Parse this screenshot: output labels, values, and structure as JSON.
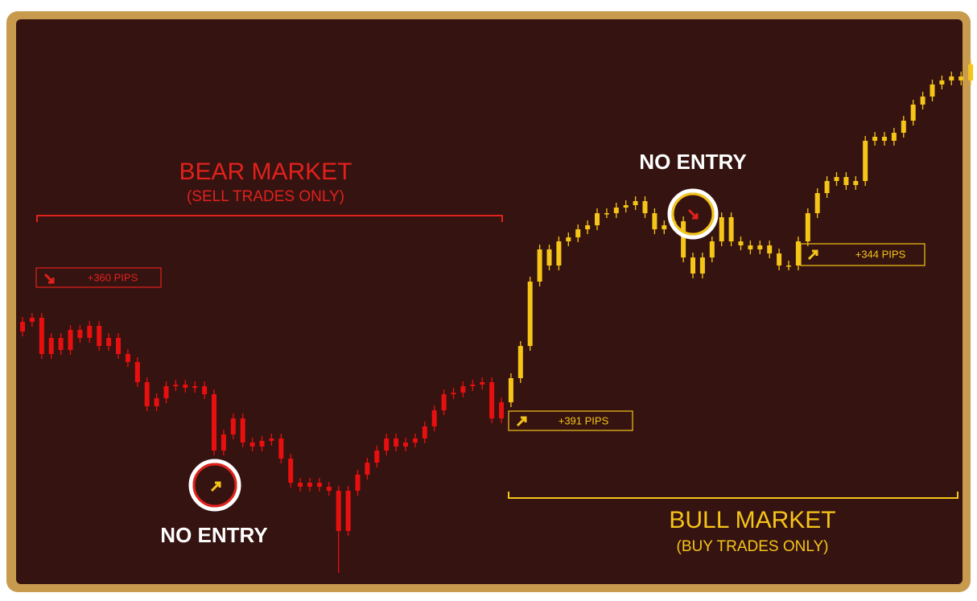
{
  "chart_data": {
    "type": "candlestick",
    "ylim": [
      0,
      742
    ],
    "annotations": {
      "bear_title": "BEAR MARKET",
      "bear_subtitle": "(SELL TRADES ONLY)",
      "bull_title": "BULL MARKET",
      "bull_subtitle": "(BUY TRADES ONLY)",
      "no_entry_1": "NO ENTRY",
      "no_entry_2": "NO ENTRY",
      "pips_1": "+360 PIPS",
      "pips_2": "+391 PIPS",
      "pips_3": "+344 PIPS"
    },
    "series": [
      {
        "color": "#e80f0f",
        "open": [
          330,
          342,
          347,
          302,
          322,
          307,
          332,
          322,
          337,
          312,
          322,
          302,
          292,
          267,
          237,
          247,
          262,
          264,
          260,
          262,
          252,
          182,
          202,
          222,
          192,
          187,
          194,
          197,
          172,
          142,
          137,
          142,
          137,
          132,
          82,
          132,
          152,
          167,
          182,
          197,
          187,
          192,
          197,
          212,
          232,
          252,
          254,
          262,
          264,
          267,
          222
        ],
        "high": [
          348,
          353,
          353,
          328,
          328,
          338,
          338,
          343,
          343,
          328,
          328,
          308,
          298,
          273,
          253,
          268,
          270,
          270,
          268,
          268,
          258,
          208,
          228,
          228,
          198,
          200,
          203,
          203,
          178,
          148,
          148,
          148,
          143,
          138,
          138,
          158,
          173,
          188,
          203,
          203,
          198,
          203,
          218,
          238,
          258,
          260,
          268,
          270,
          273,
          273,
          248
        ],
        "low": [
          324,
          336,
          296,
          296,
          301,
          301,
          316,
          316,
          306,
          306,
          296,
          286,
          261,
          231,
          231,
          241,
          256,
          254,
          254,
          246,
          176,
          176,
          196,
          186,
          181,
          181,
          188,
          166,
          136,
          131,
          131,
          131,
          126,
          30,
          76,
          126,
          146,
          161,
          176,
          181,
          181,
          186,
          191,
          206,
          226,
          246,
          248,
          256,
          258,
          216,
          216
        ],
        "close": [
          342,
          347,
          302,
          322,
          307,
          332,
          322,
          337,
          312,
          322,
          302,
          292,
          267,
          237,
          247,
          262,
          264,
          260,
          262,
          252,
          182,
          202,
          222,
          192,
          187,
          194,
          197,
          172,
          142,
          137,
          142,
          137,
          132,
          82,
          132,
          152,
          167,
          182,
          197,
          187,
          192,
          197,
          212,
          232,
          252,
          254,
          262,
          264,
          267,
          222,
          242
        ]
      },
      {
        "color": "#f5c518",
        "open": [
          242,
          272,
          312,
          392,
          432,
          412,
          442,
          447,
          457,
          462,
          477,
          477,
          484,
          487,
          492,
          477,
          457,
          462,
          467,
          422,
          402,
          422,
          442,
          472,
          442,
          437,
          432,
          437,
          427,
          412,
          412,
          442,
          477,
          502,
          517,
          522,
          512,
          517,
          567,
          572,
          567,
          577,
          592,
          612,
          622,
          637,
          642,
          647,
          642
        ],
        "high": [
          278,
          318,
          398,
          438,
          438,
          448,
          453,
          463,
          468,
          483,
          483,
          490,
          493,
          498,
          498,
          483,
          468,
          473,
          473,
          428,
          428,
          448,
          478,
          478,
          448,
          443,
          443,
          443,
          433,
          418,
          448,
          483,
          508,
          523,
          528,
          528,
          523,
          573,
          578,
          578,
          583,
          598,
          618,
          628,
          643,
          648,
          653,
          653,
          668
        ],
        "low": [
          236,
          266,
          306,
          386,
          406,
          406,
          436,
          441,
          451,
          456,
          471,
          471,
          478,
          481,
          471,
          451,
          451,
          456,
          416,
          396,
          396,
          416,
          436,
          436,
          431,
          426,
          426,
          421,
          406,
          406,
          406,
          436,
          471,
          496,
          511,
          506,
          506,
          511,
          561,
          561,
          561,
          571,
          586,
          606,
          616,
          631,
          636,
          636,
          636
        ],
        "close": [
          272,
          312,
          392,
          432,
          412,
          442,
          447,
          457,
          462,
          477,
          477,
          484,
          487,
          492,
          477,
          457,
          462,
          467,
          422,
          402,
          422,
          442,
          472,
          442,
          437,
          432,
          437,
          427,
          412,
          412,
          442,
          477,
          502,
          517,
          522,
          512,
          517,
          567,
          572,
          567,
          577,
          592,
          612,
          622,
          637,
          642,
          647,
          642,
          662
        ]
      }
    ]
  }
}
